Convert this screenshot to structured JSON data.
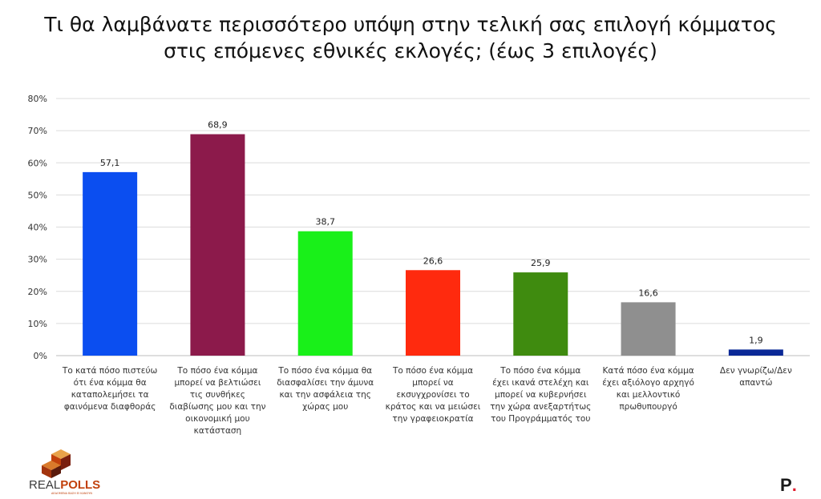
{
  "title": {
    "line1": "Τι θα λαμβάνατε περισσότερο υπόψη στην τελική σας επιλογή κόμματος",
    "line2": "στις επόμενες εθνικές εκλογές; (έως 3 επιλογές)"
  },
  "chart_data": {
    "type": "bar",
    "categories": [
      [
        "Το κατά πόσο πιστεύω",
        "ότι ένα κόμμα θα",
        "καταπολεμήσει τα",
        "φαινόμενα διαφθοράς"
      ],
      [
        "Το πόσο ένα κόμμα",
        "μπορεί να βελτιώσει",
        "τις συνθήκες",
        "διαβίωσης μου και την",
        "οικονομική μου",
        "κατάσταση"
      ],
      [
        "Το πόσο ένα κόμμα θα",
        "διασφαλίσει την άμυνα",
        "και την ασφάλεια της",
        "χώρας μου"
      ],
      [
        "Το πόσο ένα κόμμα",
        "μπορεί να",
        "εκσυγχρονίσει το",
        "κράτος και να μειώσει",
        "την γραφειοκρατία"
      ],
      [
        "Το πόσο ένα κόμμα",
        "έχει ικανά στελέχη και",
        "μπορεί να κυβερνήσει",
        "την χώρα ανεξαρτήτως",
        "του Προγράμματός του"
      ],
      [
        "Κατά πόσο ένα κόμμα",
        "έχει αξιόλογο αρχηγό",
        "και μελλοντικό",
        "πρωθυπουργό"
      ],
      [
        "Δεν γνωρίζω/Δεν",
        "απαντώ"
      ]
    ],
    "values": [
      57.1,
      68.9,
      38.7,
      26.6,
      25.9,
      16.6,
      1.9
    ],
    "value_labels": [
      "57,1",
      "68,9",
      "38,7",
      "26,6",
      "25,9",
      "16,6",
      "1,9"
    ],
    "colors": [
      "#0b4ef0",
      "#8c1a4b",
      "#19f019",
      "#ff2a0e",
      "#3f8b0f",
      "#8f8f8f",
      "#0a2896"
    ],
    "ylim": [
      0,
      80
    ],
    "yticks": [
      "0%",
      "10%",
      "20%",
      "30%",
      "40%",
      "50%",
      "60%",
      "70%",
      "80%"
    ],
    "grid": true,
    "legend": "none",
    "xlabel": "",
    "ylabel": ""
  },
  "branding": {
    "logo_part1": "REAL",
    "logo_part2": "POLLS",
    "logo_tagline": "ΔΕΔΟΜΕΝΑ ΒΑΣΗ ΕΙ ΚΑΝΟΥΝ",
    "brand_mark": "P",
    "brand_dot": "."
  }
}
